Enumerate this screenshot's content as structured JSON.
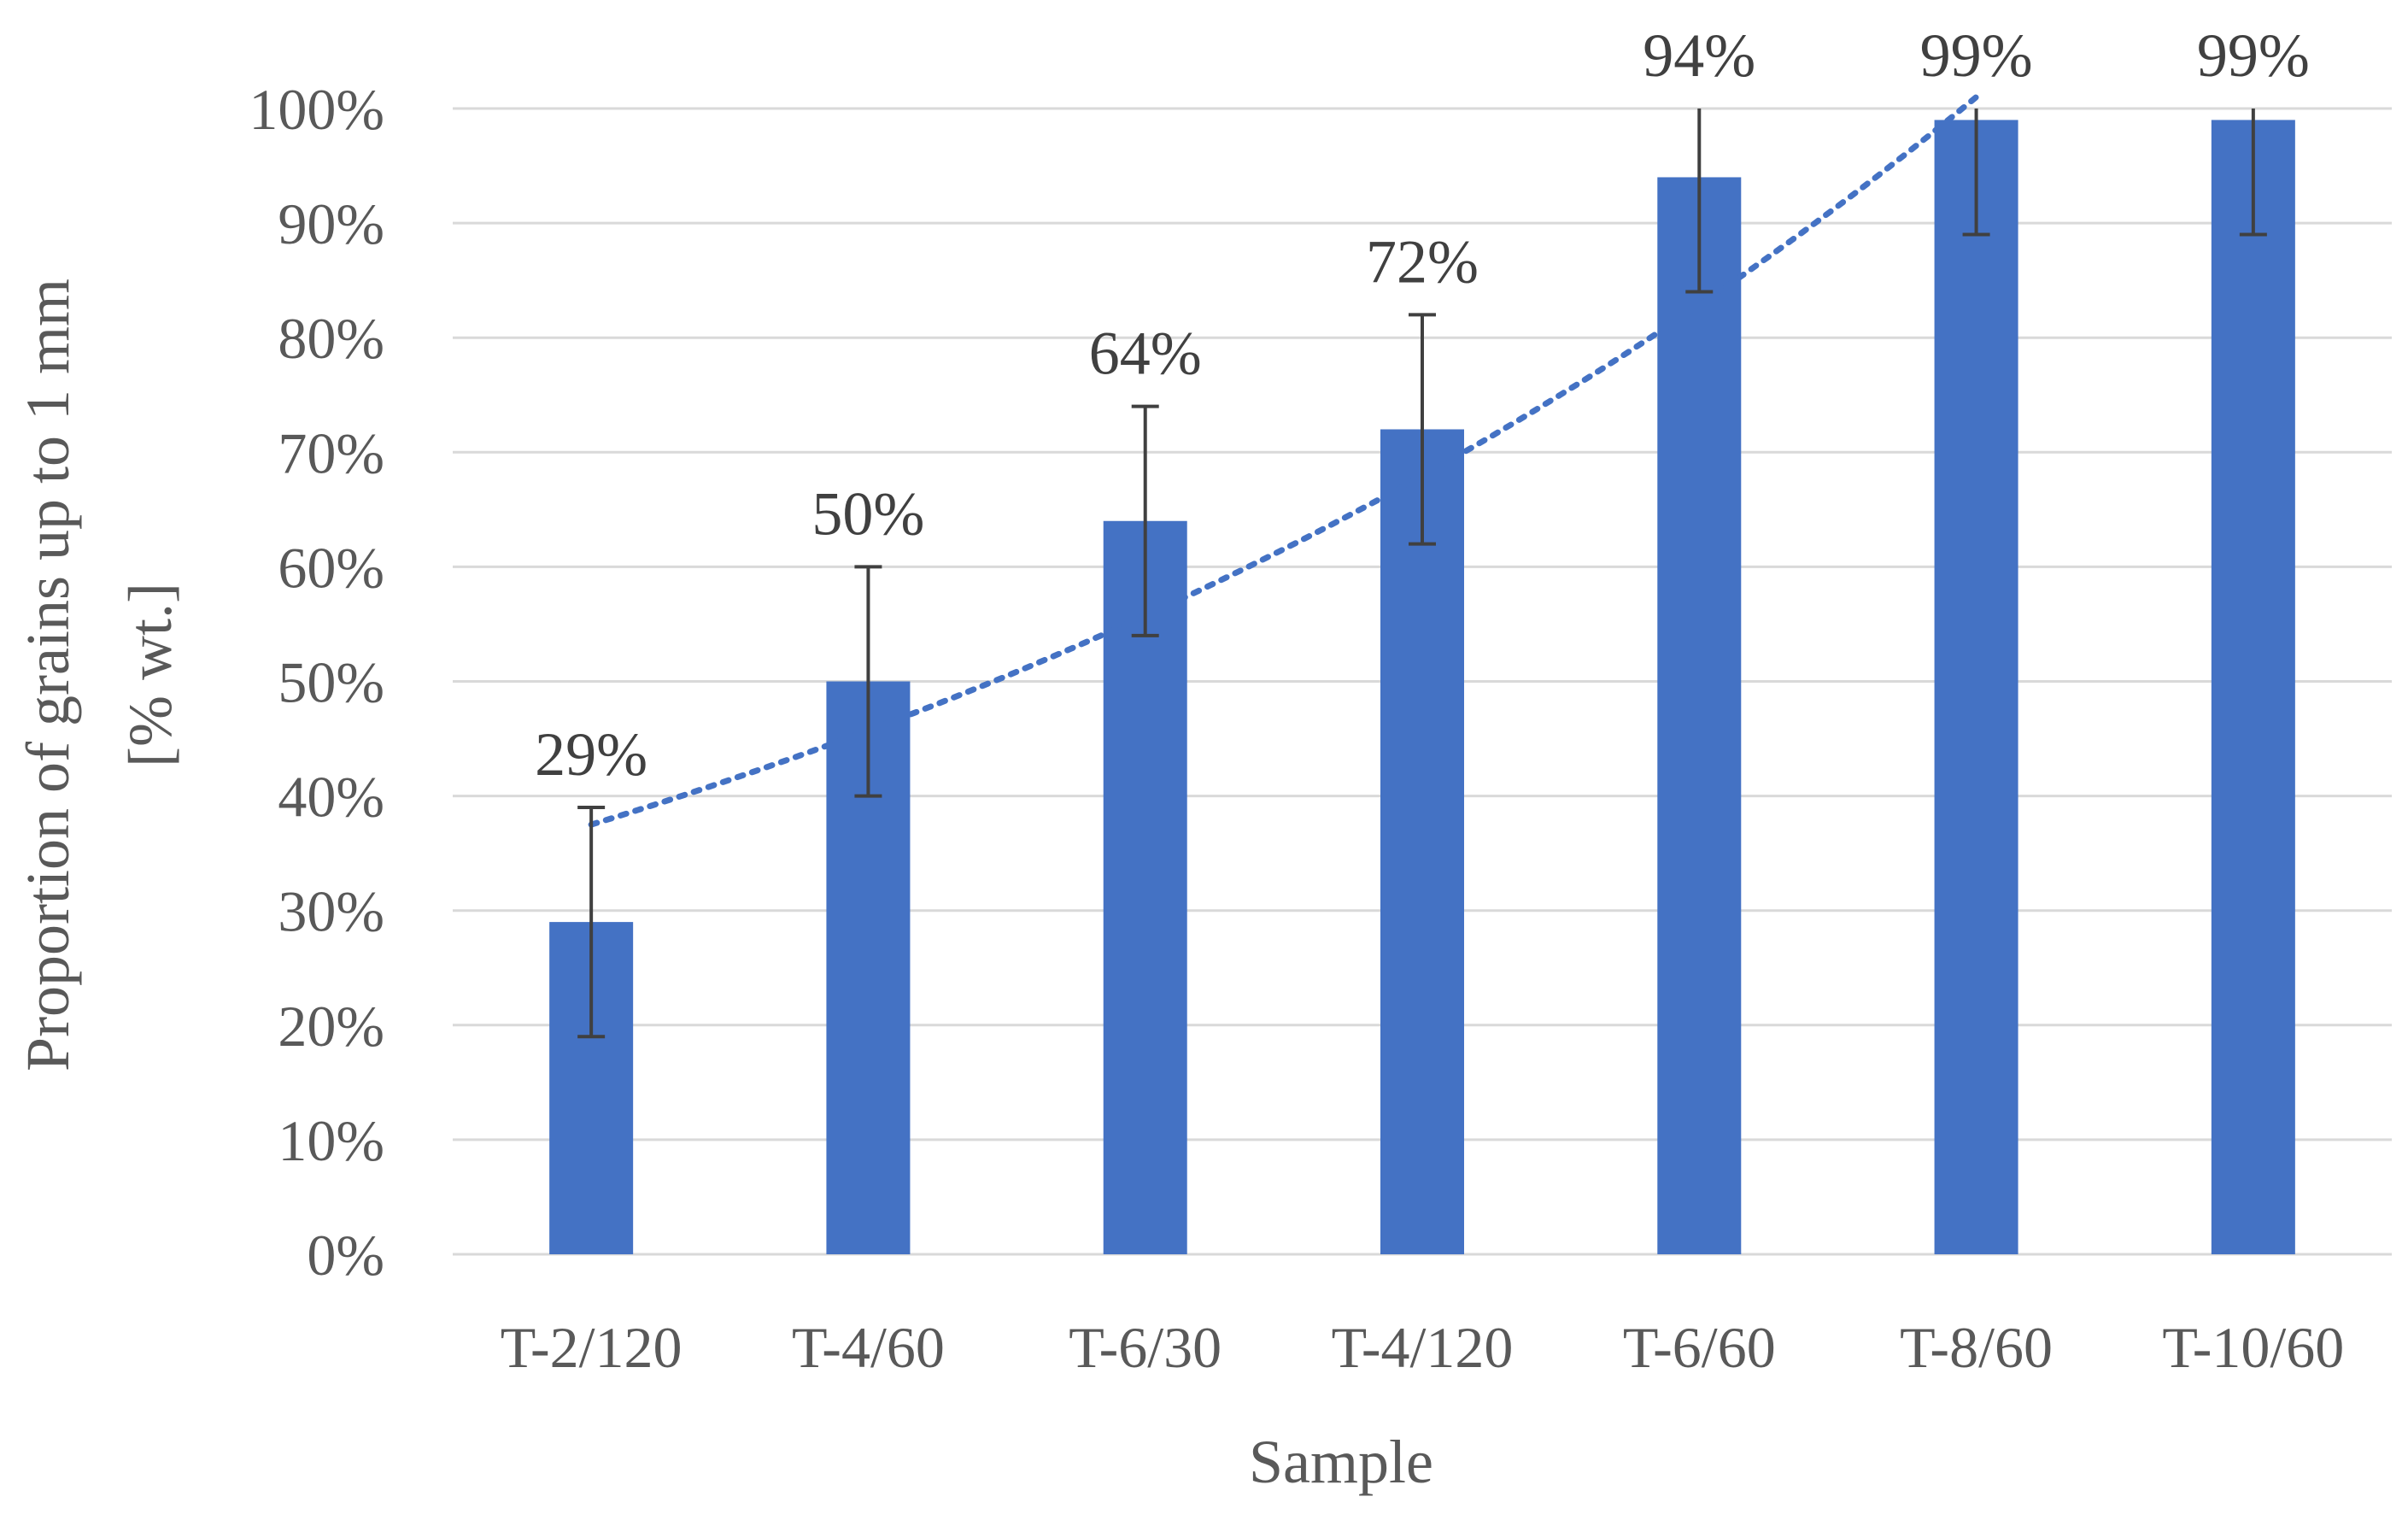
{
  "chart_data": {
    "type": "bar",
    "title": "",
    "xlabel": "Sample",
    "ylabel_lines": [
      "Proportion of grains up to 1 mm",
      "[% wt.]"
    ],
    "categories": [
      "T-2/120",
      "T-4/60",
      "T-6/30",
      "T-4/120",
      "T-6/60",
      "T-8/60",
      "T-10/60"
    ],
    "values": [
      29,
      50,
      64,
      72,
      94,
      99,
      99
    ],
    "data_labels": [
      "29%",
      "50%",
      "64%",
      "72%",
      "94%",
      "99%",
      "99%"
    ],
    "error_bars": [
      10,
      10,
      10,
      10,
      10,
      10,
      10
    ],
    "ylim": [
      0,
      100
    ],
    "yticks": [
      "0%",
      "10%",
      "20%",
      "30%",
      "40%",
      "50%",
      "60%",
      "70%",
      "80%",
      "90%",
      "100%"
    ],
    "grid": true,
    "legend": "none",
    "trendline": {
      "style": "dotted",
      "x_range": [
        0,
        5
      ],
      "y_start": 37.5,
      "y_end": 101
    },
    "colors": {
      "bar": "#4472C4",
      "error_bar": "#404040",
      "trendline": "#4472C4",
      "grid": "#D9D9D9",
      "text": "#595959"
    }
  }
}
